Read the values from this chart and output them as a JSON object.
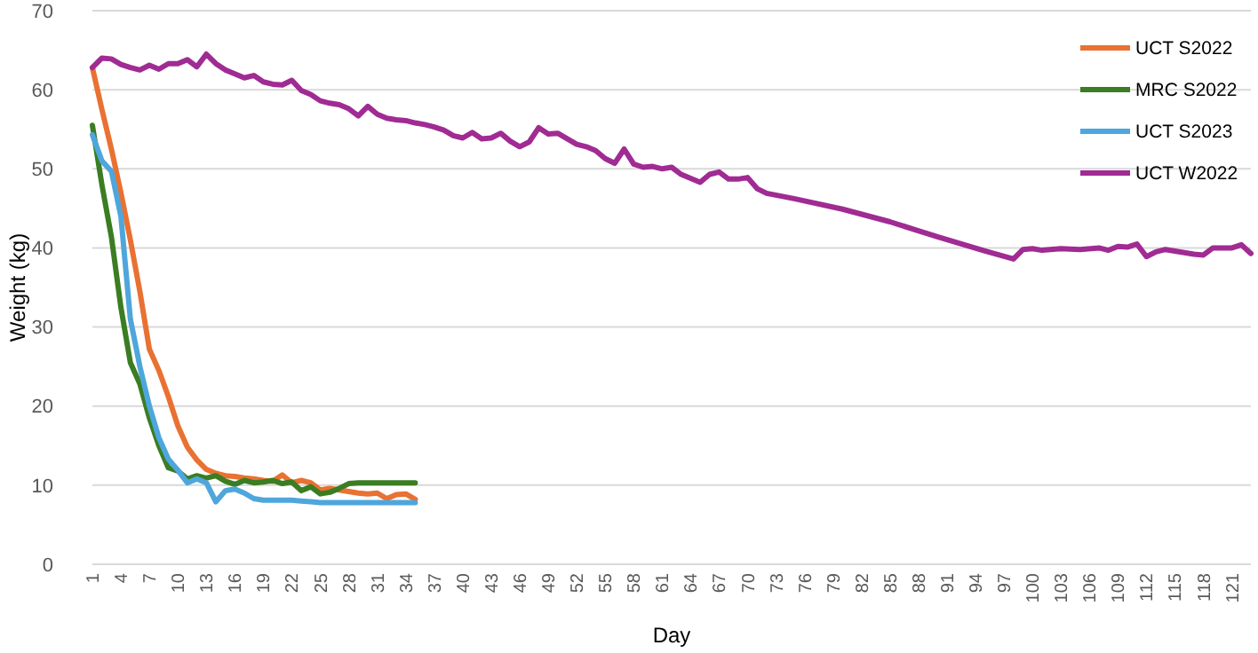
{
  "chart_data": {
    "type": "line",
    "xlabel": "Day",
    "ylabel": "Weight (kg)",
    "xlim": [
      1,
      123
    ],
    "xticks": [
      1,
      4,
      7,
      10,
      13,
      16,
      19,
      22,
      25,
      28,
      31,
      34,
      37,
      40,
      43,
      46,
      49,
      52,
      55,
      58,
      61,
      64,
      67,
      70,
      73,
      76,
      79,
      82,
      85,
      88,
      91,
      94,
      97,
      100,
      103,
      106,
      109,
      112,
      115,
      118,
      121
    ],
    "ylim": [
      0,
      70
    ],
    "yticks": [
      0,
      10,
      20,
      30,
      40,
      50,
      60,
      70
    ],
    "grid": "y",
    "legend": "top right",
    "marker": "none",
    "line_style": "solid",
    "series": [
      {
        "name": "UCT S2022",
        "color": "#e97132",
        "x": [
          1,
          2,
          3,
          4,
          5,
          6,
          7,
          8,
          9,
          10,
          11,
          12,
          13,
          14,
          15,
          16,
          17,
          18,
          19,
          20,
          21,
          22,
          23,
          24,
          25,
          26,
          27,
          28,
          29,
          30,
          31,
          32,
          33,
          34,
          35
        ],
        "values": [
          62.8,
          57.5,
          52.5,
          47,
          41,
          34.5,
          27.2,
          24.5,
          21.2,
          17.5,
          14.8,
          13.2,
          12,
          11.5,
          11.2,
          11.1,
          10.9,
          10.8,
          10.6,
          10.5,
          11.3,
          10.3,
          10.6,
          10.3,
          9.4,
          9.6,
          9.4,
          9.2,
          9,
          8.9,
          9,
          8.3,
          8.8,
          8.9,
          8.2
        ]
      },
      {
        "name": "MRC S2022",
        "color": "#3a7d22",
        "x": [
          1,
          2,
          3,
          4,
          5,
          6,
          7,
          8,
          9,
          10,
          11,
          12,
          13,
          14,
          15,
          16,
          17,
          18,
          19,
          20,
          21,
          22,
          23,
          24,
          25,
          26,
          27,
          28,
          29,
          30,
          31,
          32,
          33,
          34,
          35
        ],
        "values": [
          55.5,
          48,
          41.4,
          32.5,
          25.5,
          22.8,
          18.5,
          15,
          12.2,
          11.8,
          10.8,
          11.2,
          10.9,
          11.2,
          10.5,
          10.1,
          10.6,
          10.3,
          10.4,
          10.6,
          10.2,
          10.4,
          9.3,
          9.8,
          8.9,
          9.1,
          9.6,
          10.2,
          10.3,
          10.3,
          10.3,
          10.3,
          10.3,
          10.3,
          10.3
        ]
      },
      {
        "name": "UCT S2023",
        "color": "#4ea6dc",
        "x": [
          1,
          2,
          3,
          4,
          5,
          6,
          7,
          8,
          9,
          10,
          11,
          12,
          13,
          14,
          15,
          16,
          17,
          18,
          19,
          20,
          21,
          22,
          23,
          24,
          25,
          26,
          27,
          28,
          29,
          30,
          31,
          32,
          33,
          34,
          35
        ],
        "values": [
          54.3,
          51,
          49.7,
          44,
          31,
          25,
          20,
          16,
          13.3,
          11.9,
          10.3,
          10.8,
          10.3,
          7.9,
          9.3,
          9.5,
          9,
          8.3,
          8.1,
          8.1,
          8.1,
          8.1,
          8,
          7.9,
          7.8,
          7.8,
          7.8,
          7.8,
          7.8,
          7.8,
          7.8,
          7.8,
          7.8,
          7.8,
          7.8
        ]
      },
      {
        "name": "UCT W2022",
        "color": "#a02b93",
        "x": [
          1,
          2,
          3,
          4,
          5,
          6,
          7,
          8,
          9,
          10,
          11,
          12,
          13,
          14,
          15,
          16,
          17,
          18,
          19,
          20,
          21,
          22,
          23,
          24,
          25,
          26,
          27,
          28,
          29,
          30,
          31,
          32,
          33,
          34,
          35,
          36,
          37,
          38,
          39,
          40,
          41,
          42,
          43,
          44,
          45,
          46,
          47,
          48,
          49,
          50,
          51,
          52,
          53,
          54,
          55,
          56,
          57,
          58,
          59,
          60,
          61,
          62,
          63,
          64,
          65,
          66,
          67,
          68,
          69,
          70,
          71,
          72,
          75,
          80,
          85,
          90,
          95,
          98,
          99,
          100,
          101,
          103,
          105,
          107,
          108,
          109,
          110,
          111,
          112,
          113,
          114,
          116,
          117,
          118,
          119,
          120,
          121,
          122,
          123
        ],
        "values": [
          62.8,
          64,
          63.9,
          63.2,
          62.8,
          62.5,
          63.1,
          62.6,
          63.3,
          63.3,
          63.8,
          62.9,
          64.5,
          63.3,
          62.5,
          62,
          61.5,
          61.8,
          61,
          60.7,
          60.6,
          61.2,
          59.9,
          59.4,
          58.6,
          58.3,
          58.1,
          57.6,
          56.7,
          57.9,
          56.9,
          56.4,
          56.2,
          56.1,
          55.8,
          55.6,
          55.3,
          54.9,
          54.2,
          53.9,
          54.6,
          53.8,
          53.9,
          54.5,
          53.5,
          52.8,
          53.4,
          55.2,
          54.4,
          54.5,
          53.8,
          53.1,
          52.8,
          52.3,
          51.3,
          50.7,
          52.5,
          50.6,
          50.2,
          50.3,
          50,
          50.2,
          49.3,
          48.8,
          48.3,
          49.3,
          49.6,
          48.7,
          48.7,
          48.9,
          47.5,
          46.9,
          46.2,
          44.9,
          43.3,
          41.4,
          39.6,
          38.6,
          39.8,
          39.9,
          39.7,
          39.9,
          39.8,
          40,
          39.7,
          40.2,
          40.1,
          40.5,
          38.9,
          39.5,
          39.8,
          39.4,
          39.2,
          39.1,
          40,
          40,
          40,
          40.4,
          39.3
        ]
      }
    ]
  }
}
